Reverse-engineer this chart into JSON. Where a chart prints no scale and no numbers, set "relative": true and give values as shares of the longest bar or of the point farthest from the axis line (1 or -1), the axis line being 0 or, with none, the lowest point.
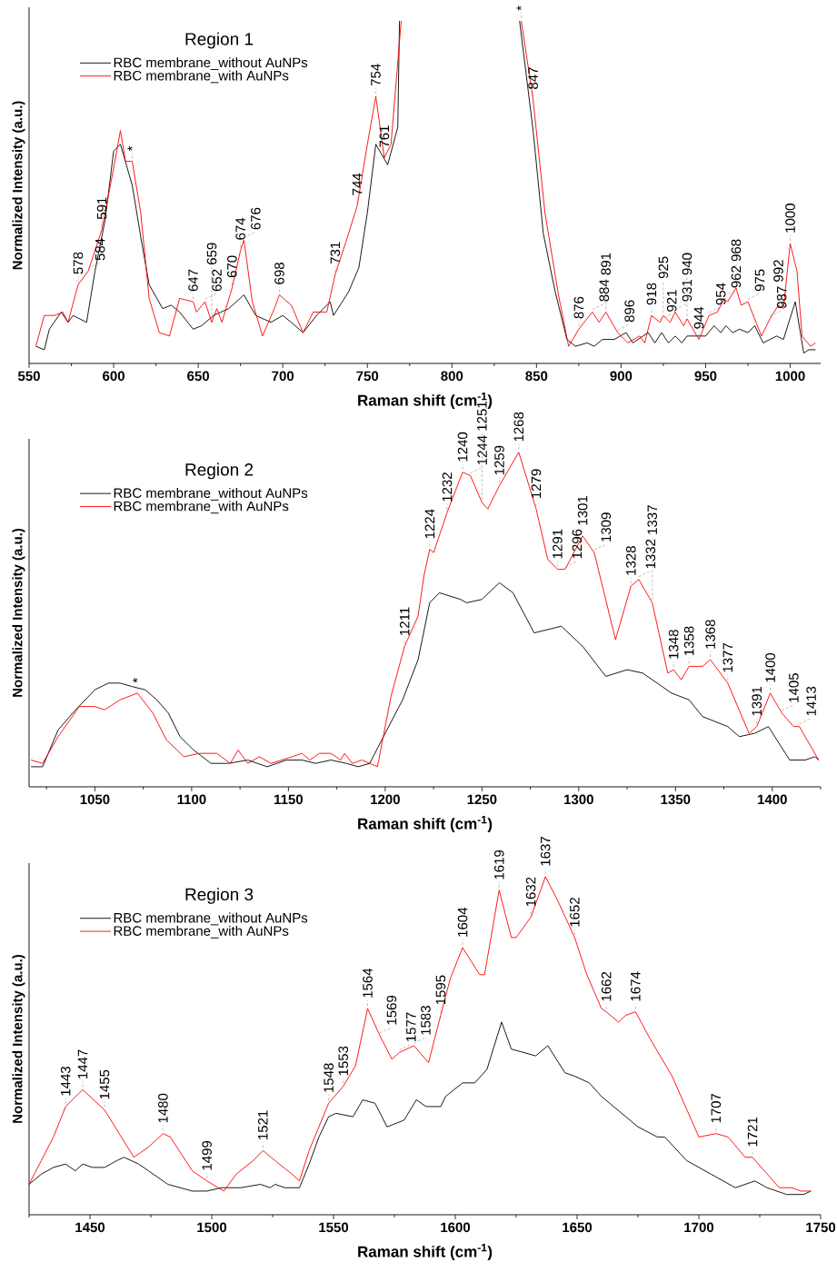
{
  "chart_data": [
    {
      "type": "line",
      "title": "Region 1",
      "xlabel": "Raman shift (cm$^{-1}$)",
      "ylabel": "Normalized Intensity (a.u.)",
      "relative": true,
      "legend": "top left",
      "xlim": [
        550,
        1018
      ],
      "xticks": [
        550,
        {
          "value": 575,
          "label": null
        },
        600,
        {
          "value": 625,
          "label": null
        },
        650,
        {
          "value": 675,
          "label": null
        },
        700,
        {
          "value": 725,
          "label": null
        },
        750,
        {
          "value": 775,
          "label": null
        },
        800,
        {
          "value": 825,
          "label": null
        },
        850,
        {
          "value": 875,
          "label": null
        },
        900,
        {
          "value": 925,
          "label": null
        },
        950,
        {
          "value": 975,
          "label": null
        },
        1000
      ],
      "series": [
        {
          "name": "RBC membrane_without AuNPs",
          "color": "#000000",
          "x": [
            554,
            559,
            562,
            569,
            573,
            576,
            584,
            589,
            595,
            600,
            604,
            611,
            616,
            621,
            629,
            634,
            639,
            647,
            652,
            659,
            668,
            677,
            684,
            693,
            700,
            705,
            712,
            720,
            728,
            730,
            739,
            745,
            750,
            755,
            762,
            768,
            769,
            800,
            840,
            848,
            854,
            861,
            868,
            873,
            880,
            884,
            889,
            896,
            903,
            907,
            916,
            920,
            924,
            928,
            932,
            936,
            939,
            950,
            955,
            959,
            962,
            966,
            970,
            975,
            979,
            984,
            992,
            996,
            1003,
            1008,
            1011,
            1015
          ],
          "values": [
            0.05,
            0.04,
            0.1,
            0.15,
            0.12,
            0.14,
            0.12,
            0.27,
            0.42,
            0.62,
            0.64,
            0.52,
            0.37,
            0.23,
            0.16,
            0.17,
            0.15,
            0.1,
            0.11,
            0.14,
            0.16,
            0.2,
            0.14,
            0.12,
            0.14,
            0.12,
            0.09,
            0.14,
            0.18,
            0.14,
            0.21,
            0.28,
            0.44,
            0.64,
            0.58,
            0.69,
            1,
            null,
            1,
            0.68,
            0.38,
            0.21,
            0.07,
            0.05,
            0.06,
            0.05,
            0.07,
            0.07,
            0.09,
            0.06,
            0.09,
            0.06,
            0.09,
            0.06,
            0.08,
            0.06,
            0.08,
            0.08,
            0.11,
            0.09,
            0.11,
            0.09,
            0.1,
            0.09,
            0.11,
            0.06,
            0.08,
            0.07,
            0.18,
            0.03,
            0.04,
            0.04
          ]
        },
        {
          "name": "RBC membrane_with AuNPs",
          "color": "#ff0000",
          "x": [
            554,
            559,
            565,
            570,
            573,
            579,
            585,
            593,
            600,
            604,
            607,
            611,
            616,
            621,
            627,
            633,
            639,
            647,
            649,
            654,
            658,
            661,
            664,
            670,
            675,
            677,
            682,
            688,
            695,
            698,
            705,
            712,
            718,
            726,
            731,
            737,
            744,
            750,
            755,
            760,
            764,
            770,
            800,
            841,
            848,
            855,
            863,
            869,
            875,
            883,
            887,
            891,
            898,
            904,
            911,
            914,
            918,
            923,
            925,
            929,
            932,
            937,
            939,
            946,
            952,
            957,
            961,
            963,
            968,
            971,
            975,
            983,
            988,
            993,
            996,
            1000,
            1004,
            1007,
            1012,
            1015
          ],
          "values": [
            0.05,
            0.14,
            0.14,
            0.15,
            0.12,
            0.23,
            0.27,
            0.39,
            0.57,
            0.68,
            0.59,
            0.59,
            0.44,
            0.19,
            0.09,
            0.08,
            0.19,
            0.18,
            0.15,
            0.18,
            0.12,
            0.16,
            0.12,
            0.22,
            0.33,
            0.36,
            0.18,
            0.08,
            0.16,
            0.2,
            0.17,
            0.09,
            0.15,
            0.15,
            0.26,
            0.35,
            0.46,
            0.64,
            0.78,
            0.6,
            0.64,
            1,
            null,
            1,
            0.77,
            0.44,
            0.2,
            0.05,
            0.1,
            0.15,
            0.12,
            0.15,
            0.09,
            0.06,
            0.08,
            0.06,
            0.14,
            0.12,
            0.14,
            0.12,
            0.15,
            0.11,
            0.13,
            0.07,
            0.14,
            0.15,
            0.19,
            0.18,
            0.22,
            0.17,
            0.18,
            0.08,
            0.13,
            0.17,
            0.16,
            0.35,
            0.27,
            0.08,
            0.05,
            0.06
          ]
        }
      ],
      "annotations": [
        {
          "text": "578",
          "x": 579,
          "y": 0.23
        },
        {
          "text": "584",
          "x": 585,
          "y": 0.27
        },
        {
          "text": "591",
          "x": 593,
          "y": 0.39
        },
        {
          "text": "*",
          "x": 611,
          "y": 0.59
        },
        {
          "text": "647",
          "x": 647,
          "y": 0.18
        },
        {
          "text": "652",
          "x": 654,
          "y": 0.18
        },
        {
          "text": "659",
          "x": 658,
          "y": 0.12
        },
        {
          "text": "670",
          "x": 670,
          "y": 0.22
        },
        {
          "text": "674",
          "x": 675,
          "y": 0.33
        },
        {
          "text": "676",
          "x": 677,
          "y": 0.36
        },
        {
          "text": "698",
          "x": 698,
          "y": 0.2
        },
        {
          "text": "731",
          "x": 731,
          "y": 0.26
        },
        {
          "text": "744",
          "x": 744,
          "y": 0.46
        },
        {
          "text": "754",
          "x": 755,
          "y": 0.78
        },
        {
          "text": "761",
          "x": 760,
          "y": 0.6
        },
        {
          "text": "*",
          "x": 841,
          "y": 1
        },
        {
          "text": "847",
          "x": 848,
          "y": 0.77
        },
        {
          "text": "876",
          "x": 875,
          "y": 0.1
        },
        {
          "text": "884",
          "x": 883,
          "y": 0.15
        },
        {
          "text": "891",
          "x": 891,
          "y": 0.15
        },
        {
          "text": "896",
          "x": 898,
          "y": 0.09
        },
        {
          "text": "918",
          "x": 918,
          "y": 0.14
        },
        {
          "text": "921",
          "x": 923,
          "y": 0.12
        },
        {
          "text": "925",
          "x": 925,
          "y": 0.14
        },
        {
          "text": "931",
          "x": 932,
          "y": 0.15
        },
        {
          "text": "940",
          "x": 939,
          "y": 0.13
        },
        {
          "text": "944",
          "x": 946,
          "y": 0.07
        },
        {
          "text": "954",
          "x": 952,
          "y": 0.14
        },
        {
          "text": "962",
          "x": 961,
          "y": 0.19
        },
        {
          "text": "968",
          "x": 968,
          "y": 0.22
        },
        {
          "text": "975",
          "x": 975,
          "y": 0.18
        },
        {
          "text": "987",
          "x": 988,
          "y": 0.13
        },
        {
          "text": "992",
          "x": 993,
          "y": 0.17
        },
        {
          "text": "1000",
          "x": 1000,
          "y": 0.35
        }
      ]
    },
    {
      "type": "line",
      "title": "Region 2",
      "xlabel": "Raman shift (cm$^{-1}$)",
      "ylabel": "Normalized Intensity (a.u.)",
      "relative": true,
      "legend": "top left",
      "xlim": [
        1016,
        1425
      ],
      "xticks": [
        {
          "value": 1025,
          "label": null
        },
        1050,
        {
          "value": 1075,
          "label": null
        },
        1100,
        {
          "value": 1125,
          "label": null
        },
        1150,
        {
          "value": 1175,
          "label": null
        },
        1200,
        {
          "value": 1225,
          "label": null
        },
        1250,
        {
          "value": 1275,
          "label": null
        },
        1300,
        {
          "value": 1325,
          "label": null
        },
        1350,
        {
          "value": 1375,
          "label": null
        },
        1400,
        {
          "value": 1425,
          "label": null
        }
      ],
      "series": [
        {
          "name": "RBC membrane_without AuNPs",
          "color": "#000000",
          "x": [
            1017,
            1023,
            1031,
            1040,
            1050,
            1057,
            1063,
            1069,
            1076,
            1082,
            1088,
            1094,
            1101,
            1110,
            1119,
            1129,
            1139,
            1149,
            1157,
            1164,
            1172,
            1180,
            1186,
            1192,
            1200,
            1209,
            1217,
            1223,
            1228,
            1239,
            1242,
            1250,
            1259,
            1266,
            1277,
            1291,
            1302,
            1314,
            1325,
            1333,
            1348,
            1357,
            1364,
            1377,
            1383,
            1391,
            1398,
            1409,
            1417,
            1422,
            1424
          ],
          "values": [
            0.06,
            0.06,
            0.17,
            0.23,
            0.29,
            0.31,
            0.31,
            0.3,
            0.29,
            0.26,
            0.22,
            0.15,
            0.11,
            0.07,
            0.07,
            0.08,
            0.06,
            0.08,
            0.08,
            0.07,
            0.08,
            0.07,
            0.06,
            0.07,
            0.16,
            0.26,
            0.38,
            0.55,
            0.58,
            0.56,
            0.55,
            0.56,
            0.61,
            0.58,
            0.46,
            0.48,
            0.42,
            0.33,
            0.35,
            0.34,
            0.28,
            0.26,
            0.21,
            0.18,
            0.15,
            0.16,
            0.18,
            0.08,
            0.08,
            0.09,
            0.08
          ]
        },
        {
          "name": "RBC membrane_with AuNPs",
          "color": "#ff0000",
          "x": [
            1017,
            1023,
            1031,
            1042,
            1050,
            1055,
            1063,
            1072,
            1080,
            1087,
            1096,
            1104,
            1113,
            1120,
            1124,
            1129,
            1135,
            1141,
            1152,
            1157,
            1161,
            1166,
            1172,
            1177,
            1179,
            1183,
            1188,
            1196,
            1203,
            1210,
            1217,
            1220,
            1223,
            1225,
            1232,
            1240,
            1244,
            1250,
            1253,
            1259,
            1269,
            1278,
            1284,
            1289,
            1293,
            1302,
            1308,
            1319,
            1327,
            1331,
            1338,
            1346,
            1349,
            1353,
            1357,
            1364,
            1368,
            1377,
            1388,
            1392,
            1399,
            1405,
            1411,
            1414,
            1424
          ],
          "values": [
            0.08,
            0.07,
            0.15,
            0.24,
            0.24,
            0.23,
            0.26,
            0.28,
            0.22,
            0.14,
            0.09,
            0.1,
            0.1,
            0.07,
            0.11,
            0.07,
            0.09,
            0.07,
            0.09,
            0.1,
            0.08,
            0.1,
            0.1,
            0.08,
            0.1,
            0.07,
            0.08,
            0.06,
            0.27,
            0.42,
            0.51,
            0.63,
            0.71,
            0.7,
            0.82,
            0.94,
            0.93,
            0.85,
            0.83,
            0.9,
            1,
            0.83,
            0.68,
            0.65,
            0.65,
            0.75,
            0.7,
            0.44,
            0.6,
            0.62,
            0.55,
            0.34,
            0.35,
            0.32,
            0.36,
            0.36,
            0.38,
            0.31,
            0.16,
            0.18,
            0.28,
            0.22,
            0.18,
            0.18,
            0.08
          ]
        }
      ],
      "annotations": [
        {
          "text": "*",
          "x": 1072,
          "y": 0.28
        },
        {
          "text": "1211",
          "x": 1210,
          "y": 0.42
        },
        {
          "text": "1224",
          "x": 1223,
          "y": 0.71
        },
        {
          "text": "1232",
          "x": 1232,
          "y": 0.82
        },
        {
          "text": "1240",
          "x": 1240,
          "y": 0.94
        },
        {
          "text": "1244",
          "x": 1244,
          "y": 0.93
        },
        {
          "text": "1251",
          "x": 1250,
          "y": 0.85
        },
        {
          "text": "1259",
          "x": 1259,
          "y": 0.9
        },
        {
          "text": "1268",
          "x": 1269,
          "y": 1
        },
        {
          "text": "1279",
          "x": 1278,
          "y": 0.83
        },
        {
          "text": "1291",
          "x": 1289,
          "y": 0.65
        },
        {
          "text": "1296",
          "x": 1293,
          "y": 0.65
        },
        {
          "text": "1301",
          "x": 1302,
          "y": 0.75
        },
        {
          "text": "1309",
          "x": 1308,
          "y": 0.7
        },
        {
          "text": "1328",
          "x": 1327,
          "y": 0.6
        },
        {
          "text": "1332",
          "x": 1331,
          "y": 0.62
        },
        {
          "text": "1337",
          "x": 1338,
          "y": 0.55
        },
        {
          "text": "1348",
          "x": 1349,
          "y": 0.35
        },
        {
          "text": "1358",
          "x": 1357,
          "y": 0.36
        },
        {
          "text": "1368",
          "x": 1368,
          "y": 0.38
        },
        {
          "text": "1377",
          "x": 1377,
          "y": 0.31
        },
        {
          "text": "1391",
          "x": 1392,
          "y": 0.18
        },
        {
          "text": "1400",
          "x": 1399,
          "y": 0.28
        },
        {
          "text": "1405",
          "x": 1405,
          "y": 0.22
        },
        {
          "text": "1413",
          "x": 1414,
          "y": 0.18
        }
      ]
    },
    {
      "type": "line",
      "title": "Region 3",
      "xlabel": "Raman shift (cm$^{-1}$)",
      "ylabel": "Normalized Intensity (a.u.)",
      "relative": true,
      "legend": "top left",
      "xlim": [
        1425,
        1750
      ],
      "xticks": [
        {
          "value": 1425,
          "label": null
        },
        1450,
        {
          "value": 1475,
          "label": null
        },
        1500,
        {
          "value": 1525,
          "label": null
        },
        1550,
        {
          "value": 1575,
          "label": null
        },
        1600,
        {
          "value": 1625,
          "label": null
        },
        1650,
        {
          "value": 1675,
          "label": null
        },
        1700,
        {
          "value": 1725,
          "label": null
        },
        1750
      ],
      "series": [
        {
          "name": "RBC membrane_without AuNPs",
          "color": "#000000",
          "x": [
            1425,
            1430,
            1435,
            1440,
            1444,
            1447,
            1451,
            1456,
            1461,
            1464,
            1470,
            1474,
            1482,
            1492,
            1498,
            1504,
            1512,
            1520,
            1524,
            1526,
            1530,
            1536,
            1540,
            1544,
            1548,
            1551,
            1558,
            1562,
            1567,
            1572,
            1579,
            1584,
            1588,
            1594,
            1596,
            1603,
            1608,
            1613,
            1619,
            1623,
            1628,
            1633,
            1638,
            1645,
            1649,
            1655,
            1660,
            1665,
            1675,
            1683,
            1686,
            1695,
            1705,
            1715,
            1723,
            1728,
            1736,
            1739,
            1743,
            1746
          ],
          "values": [
            0.09,
            0.12,
            0.14,
            0.15,
            0.13,
            0.15,
            0.14,
            0.14,
            0.16,
            0.17,
            0.15,
            0.13,
            0.09,
            0.07,
            0.07,
            0.08,
            0.08,
            0.09,
            0.08,
            0.09,
            0.08,
            0.08,
            0.15,
            0.23,
            0.29,
            0.3,
            0.29,
            0.34,
            0.33,
            0.26,
            0.28,
            0.34,
            0.32,
            0.32,
            0.35,
            0.39,
            0.39,
            0.43,
            0.57,
            0.49,
            0.48,
            0.47,
            0.5,
            0.42,
            0.41,
            0.39,
            0.35,
            0.32,
            0.26,
            0.23,
            0.23,
            0.16,
            0.12,
            0.08,
            0.1,
            0.08,
            0.06,
            0.06,
            0.06,
            0.07
          ]
        },
        {
          "name": "RBC membrane_with AuNPs",
          "color": "#ff0000",
          "x": [
            1425,
            1430,
            1435,
            1440,
            1447,
            1456,
            1462,
            1468,
            1474,
            1480,
            1483,
            1492,
            1498,
            1505,
            1510,
            1517,
            1521,
            1526,
            1533,
            1536,
            1540,
            1548,
            1554,
            1559,
            1564,
            1569,
            1574,
            1577,
            1583,
            1589,
            1594,
            1598,
            1603,
            1610,
            1612,
            1618,
            1623,
            1625,
            1631,
            1637,
            1642,
            1649,
            1654,
            1660,
            1662,
            1667,
            1670,
            1674,
            1680,
            1689,
            1700,
            1707,
            1712,
            1719,
            1722,
            1733,
            1738,
            1742,
            1746
          ],
          "values": [
            0.09,
            0.16,
            0.23,
            0.32,
            0.37,
            0.31,
            0.24,
            0.17,
            0.2,
            0.24,
            0.23,
            0.13,
            0.1,
            0.07,
            0.12,
            0.16,
            0.19,
            0.16,
            0.12,
            0.1,
            0.19,
            0.33,
            0.38,
            0.44,
            0.61,
            0.53,
            0.46,
            0.48,
            0.5,
            0.45,
            0.59,
            0.7,
            0.79,
            0.71,
            0.71,
            0.96,
            0.82,
            0.82,
            0.88,
            1,
            0.93,
            0.82,
            0.71,
            0.61,
            0.6,
            0.57,
            0.59,
            0.6,
            0.52,
            0.41,
            0.23,
            0.24,
            0.23,
            0.17,
            0.17,
            0.08,
            0.08,
            0.07,
            0.07
          ]
        }
      ],
      "annotations": [
        {
          "text": "1443",
          "x": 1440,
          "y": 0.32
        },
        {
          "text": "1447",
          "x": 1447,
          "y": 0.37
        },
        {
          "text": "1455",
          "x": 1456,
          "y": 0.31
        },
        {
          "text": "1480",
          "x": 1480,
          "y": 0.24
        },
        {
          "text": "1499",
          "x": 1498,
          "y": 0.1
        },
        {
          "text": "1521",
          "x": 1521,
          "y": 0.19
        },
        {
          "text": "1548",
          "x": 1548,
          "y": 0.33
        },
        {
          "text": "1553",
          "x": 1554,
          "y": 0.38
        },
        {
          "text": "1564",
          "x": 1564,
          "y": 0.61
        },
        {
          "text": "1569",
          "x": 1569,
          "y": 0.53
        },
        {
          "text": "1577",
          "x": 1577,
          "y": 0.48
        },
        {
          "text": "1583",
          "x": 1583,
          "y": 0.5
        },
        {
          "text": "1595",
          "x": 1594,
          "y": 0.59
        },
        {
          "text": "1604",
          "x": 1603,
          "y": 0.79
        },
        {
          "text": "1619",
          "x": 1618,
          "y": 0.96
        },
        {
          "text": "1632",
          "x": 1631,
          "y": 0.88
        },
        {
          "text": "1637",
          "x": 1637,
          "y": 1
        },
        {
          "text": "1652",
          "x": 1649,
          "y": 0.82
        },
        {
          "text": "1662",
          "x": 1662,
          "y": 0.6
        },
        {
          "text": "1674",
          "x": 1674,
          "y": 0.6
        },
        {
          "text": "1707",
          "x": 1707,
          "y": 0.24
        },
        {
          "text": "1721",
          "x": 1722,
          "y": 0.17
        }
      ]
    }
  ]
}
